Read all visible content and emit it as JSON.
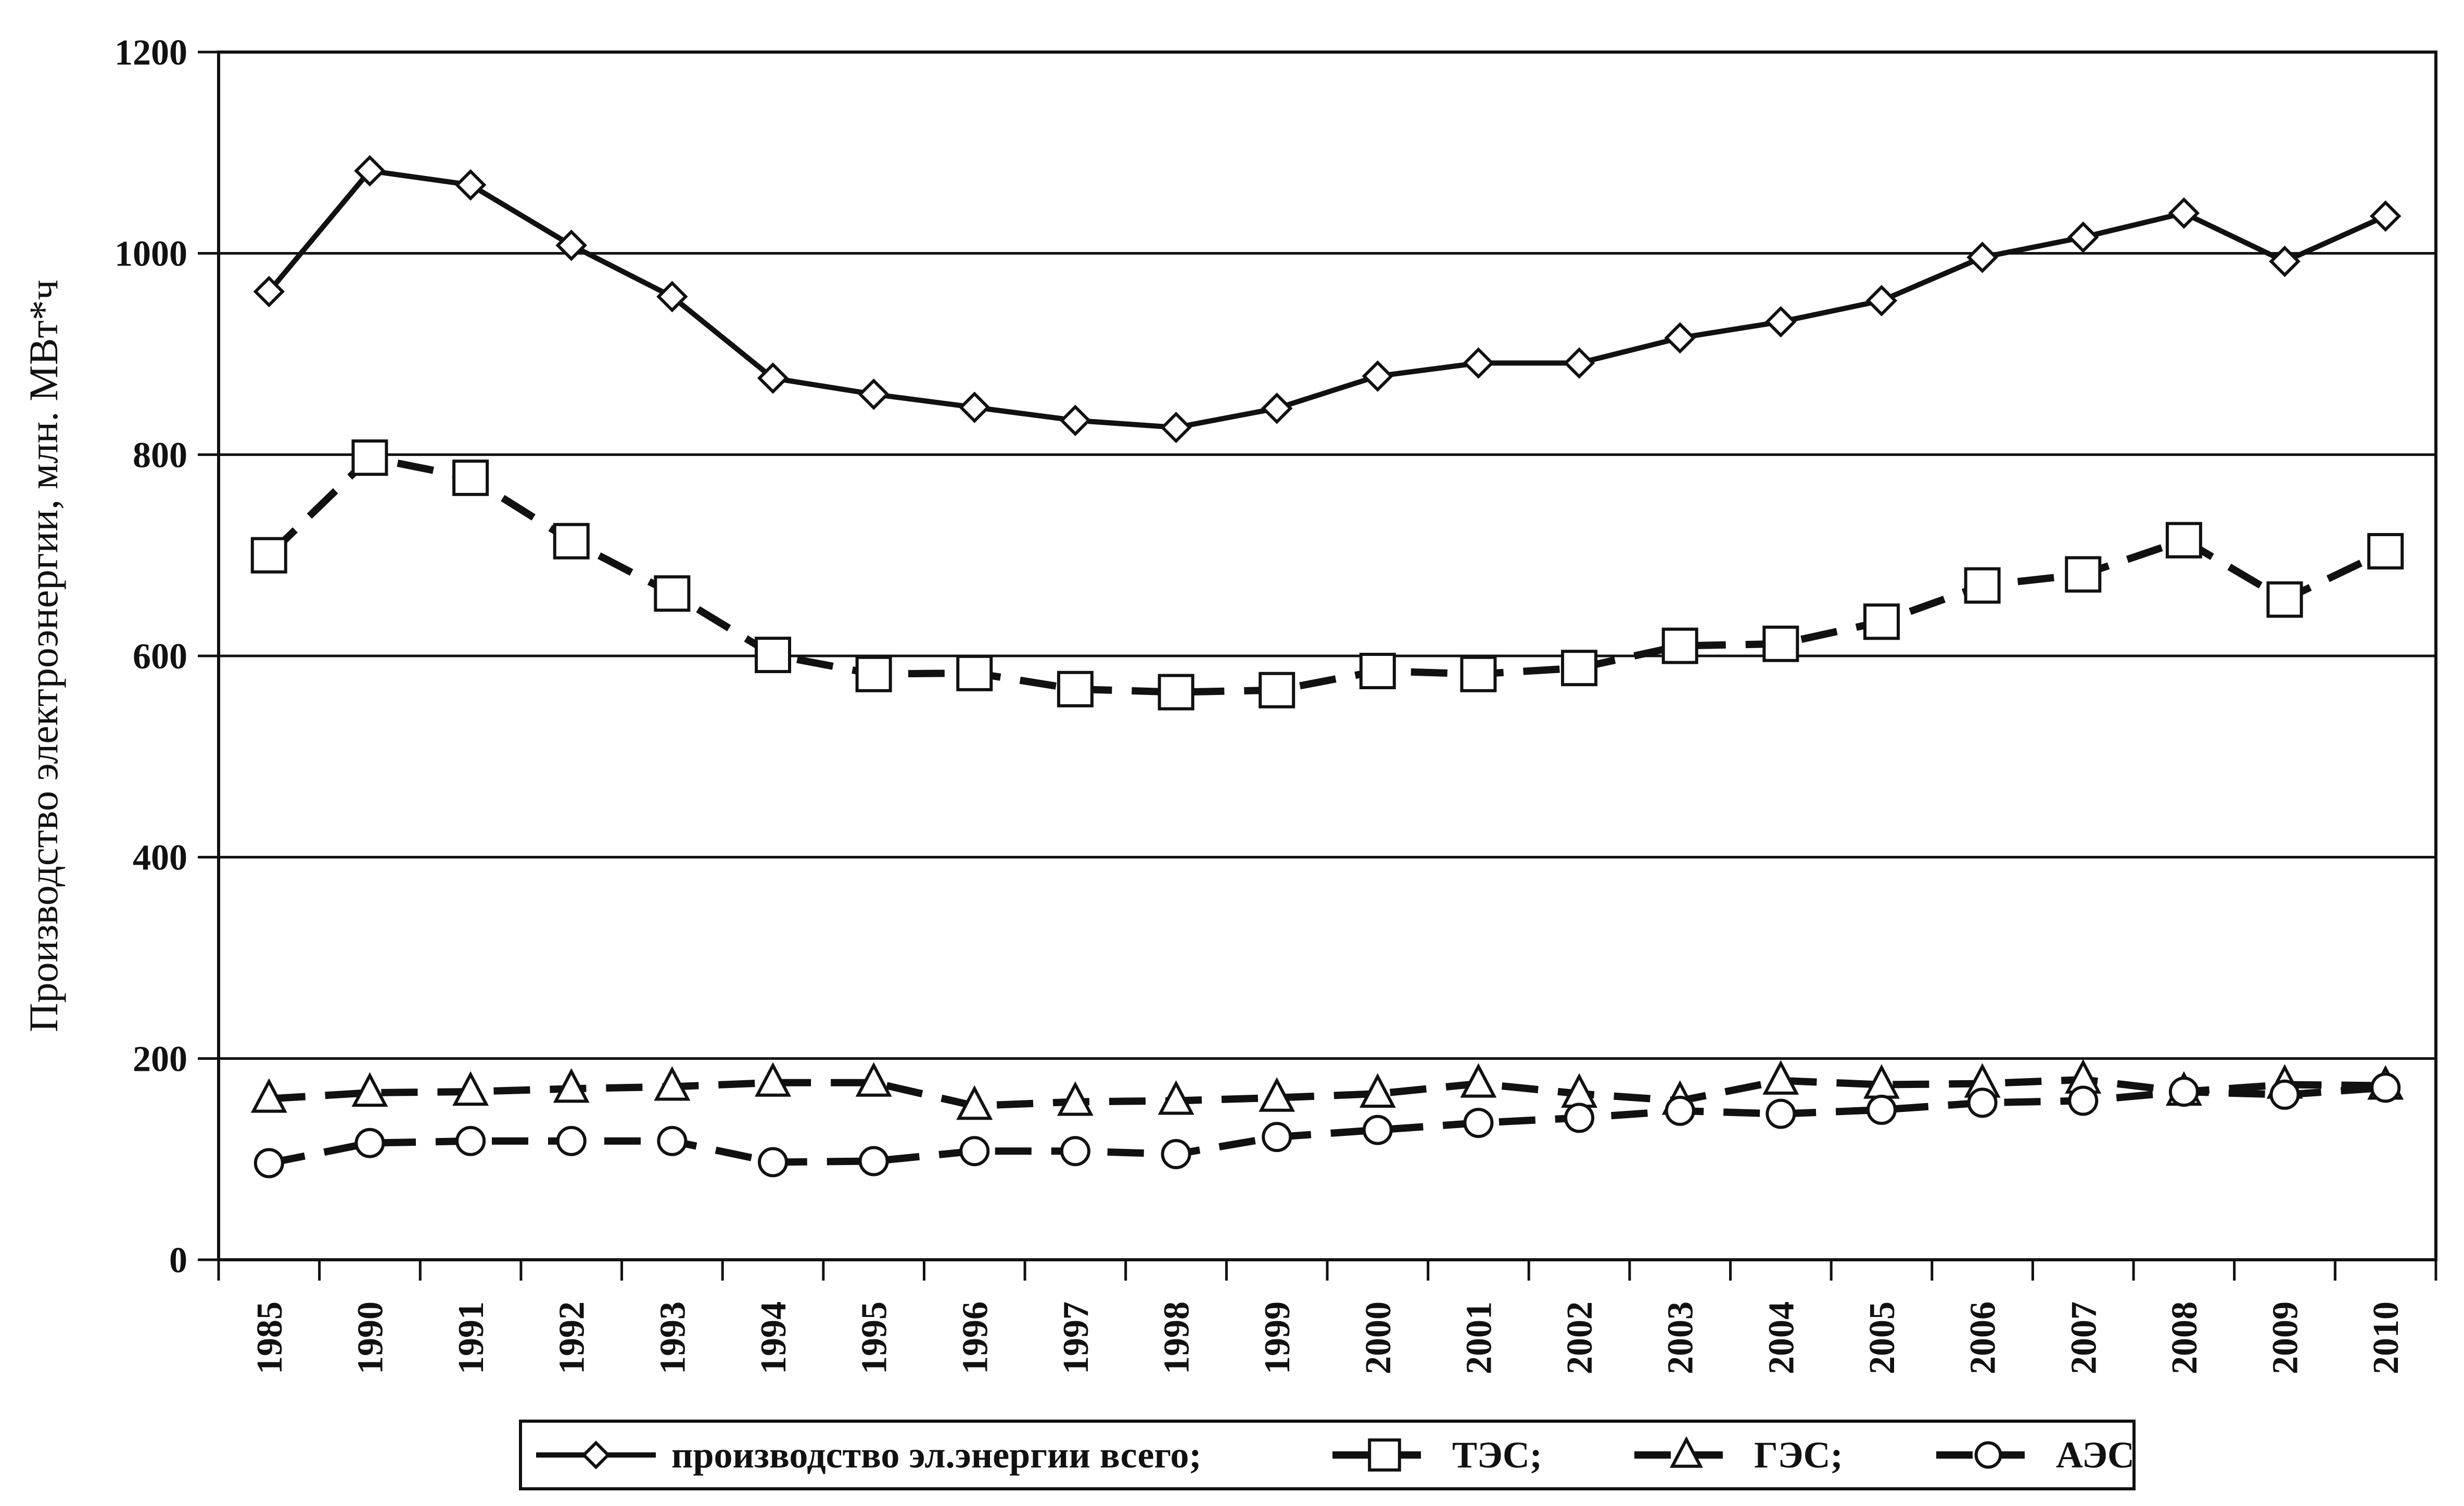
{
  "chart_data": {
    "type": "line",
    "title": "",
    "xlabel": "",
    "ylabel": "Производство электроэнергии, млн. МВт*ч",
    "ylim": [
      0,
      1200
    ],
    "yticks": [
      0,
      200,
      400,
      600,
      800,
      1000,
      1200
    ],
    "grid": "horizontal",
    "legend_position": "bottom",
    "categories": [
      "1985",
      "1990",
      "1991",
      "1992",
      "1993",
      "1994",
      "1995",
      "1996",
      "1997",
      "1998",
      "1999",
      "2000",
      "2001",
      "2002",
      "2003",
      "2004",
      "2005",
      "2006",
      "2007",
      "2008",
      "2009",
      "2010"
    ],
    "series": [
      {
        "name": "производство эл.энергии всего;",
        "marker": "diamond",
        "line": "solid-thin",
        "values": [
          962,
          1082,
          1068,
          1008,
          957,
          876,
          860,
          847,
          834,
          827,
          846,
          878,
          891,
          891,
          916,
          932,
          953,
          996,
          1016,
          1040,
          992,
          1037
        ]
      },
      {
        "name": "ТЭС;",
        "marker": "square",
        "line": "dashed",
        "values": [
          700,
          797,
          777,
          714,
          662,
          601,
          582,
          583,
          567,
          564,
          566,
          585,
          582,
          588,
          610,
          612,
          634,
          670,
          681,
          715,
          656,
          704
        ]
      },
      {
        "name": "ГЭС;",
        "marker": "triangle",
        "line": "dashed",
        "values": [
          160,
          166,
          167,
          170,
          172,
          176,
          176,
          153,
          157,
          158,
          161,
          165,
          175,
          165,
          158,
          178,
          174,
          175,
          179,
          167,
          174,
          173
        ]
      },
      {
        "name": "АЭС",
        "marker": "circle",
        "line": "dashed",
        "values": [
          96,
          116,
          118,
          118,
          118,
          97,
          98,
          108,
          108,
          105,
          122,
          129,
          136,
          141,
          148,
          145,
          149,
          156,
          158,
          167,
          164,
          171
        ]
      }
    ]
  }
}
